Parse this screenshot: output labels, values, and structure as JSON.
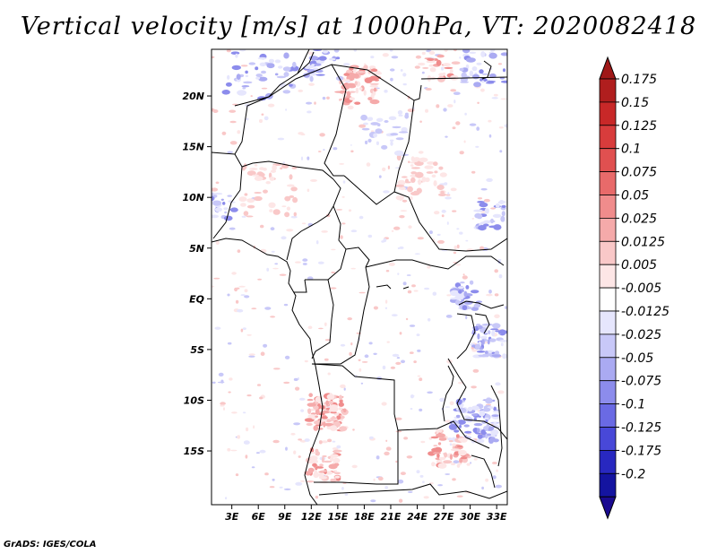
{
  "title": "Vertical velocity [m/s] at 1000hPa, VT: 2020082418",
  "credit": "GrADS: IGES/COLA",
  "lat_labels": [
    "20N",
    "15N",
    "10N",
    "5N",
    "EQ",
    "5S",
    "10S",
    "15S"
  ],
  "lat_values": [
    20,
    15,
    10,
    5,
    0,
    -5,
    -10,
    -15
  ],
  "lon_labels": [
    "3E",
    "6E",
    "9E",
    "12E",
    "15E",
    "18E",
    "21E",
    "24E",
    "27E",
    "30E",
    "33E"
  ],
  "lon_values": [
    3,
    6,
    9,
    12,
    15,
    18,
    21,
    24,
    27,
    30,
    33
  ],
  "colorbar": {
    "labels": [
      "0.175",
      "0.15",
      "0.125",
      "0.1",
      "0.075",
      "0.05",
      "0.025",
      "0.0125",
      "0.005",
      "-0.005",
      "-0.0125",
      "-0.025",
      "-0.05",
      "-0.075",
      "-0.1",
      "-0.125",
      "-0.175",
      "-0.2"
    ],
    "colors": [
      "#b01e1e",
      "#c82828",
      "#d83c3c",
      "#e05050",
      "#e86a6a",
      "#f08c8c",
      "#f5aaaa",
      "#f9c8c8",
      "#fde6e6",
      "#ffffff",
      "#e6e6fd",
      "#c8c8f8",
      "#aaaaf2",
      "#8c8cec",
      "#6a6ae4",
      "#4848d8",
      "#2828c0",
      "#1414a0"
    ],
    "top_cap_color": "#a01818",
    "bottom_cap_color": "#1a0a90"
  }
}
